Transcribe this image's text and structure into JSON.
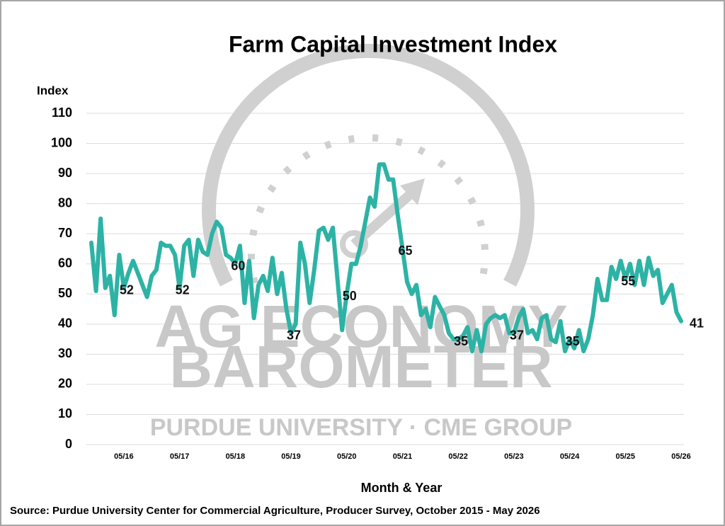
{
  "chart_data": {
    "type": "line",
    "title": "Farm Capital Investment Index",
    "y_label": "Index",
    "x_label": "Month & Year",
    "source": "Source: Purdue University Center for Commercial Agriculture, Producer Survey, October 2015 - May 2026",
    "watermark": [
      "AG ECONOMY",
      "BAROMETER",
      "PURDUE UNIVERSITY · CME GROUP"
    ],
    "categories": [
      null,
      null,
      null,
      null,
      null,
      null,
      null,
      "05/16",
      null,
      null,
      null,
      null,
      null,
      null,
      null,
      null,
      null,
      null,
      null,
      "05/17",
      null,
      null,
      null,
      null,
      null,
      null,
      null,
      null,
      null,
      null,
      null,
      "05/18",
      null,
      null,
      null,
      null,
      null,
      null,
      null,
      null,
      null,
      null,
      null,
      "05/19",
      null,
      null,
      null,
      null,
      null,
      null,
      null,
      null,
      null,
      null,
      null,
      "05/20",
      null,
      null,
      null,
      null,
      null,
      null,
      null,
      null,
      null,
      null,
      null,
      "05/21",
      null,
      null,
      null,
      null,
      null,
      null,
      null,
      null,
      null,
      null,
      null,
      "05/22",
      null,
      null,
      null,
      null,
      null,
      null,
      null,
      null,
      null,
      null,
      null,
      "05/23",
      null,
      null,
      null,
      null,
      null,
      null,
      null,
      null,
      null,
      null,
      null,
      "05/24",
      null,
      null,
      null,
      null,
      null,
      null,
      null,
      null,
      null,
      null,
      null,
      "05/25",
      null,
      null,
      null,
      null,
      null,
      null,
      null,
      null,
      null,
      null,
      null,
      "05/26"
    ],
    "series": [
      {
        "name": "Farm Capital Investment Index",
        "color": "#2db3a5",
        "values": [
          67,
          51,
          75,
          52,
          56,
          43,
          63,
          52,
          57,
          61,
          57,
          53,
          49,
          56,
          58,
          67,
          66,
          66,
          63,
          52,
          66,
          68,
          56,
          68,
          64,
          63,
          70,
          74,
          72,
          63,
          62,
          60,
          66,
          47,
          61,
          42,
          53,
          56,
          51,
          62,
          50,
          57,
          45,
          37,
          40,
          67,
          60,
          47,
          58,
          71,
          72,
          68,
          72,
          55,
          38,
          50,
          60,
          60,
          66,
          74,
          82,
          79,
          93,
          93,
          88,
          88,
          76,
          65,
          54,
          50,
          53,
          43,
          45,
          39,
          49,
          46,
          43,
          37,
          35,
          35,
          36,
          39,
          31,
          38,
          31,
          40,
          42,
          43,
          42,
          43,
          37,
          37,
          42,
          45,
          37,
          38,
          35,
          42,
          43,
          35,
          34,
          41,
          31,
          35,
          32,
          38,
          31,
          35,
          43,
          55,
          48,
          48,
          59,
          55,
          61,
          55,
          60,
          53,
          61,
          53,
          62,
          56,
          58,
          47,
          50,
          53,
          44,
          41
        ],
        "value_labels": [
          null,
          null,
          null,
          null,
          null,
          null,
          null,
          "52",
          null,
          null,
          null,
          null,
          null,
          null,
          null,
          null,
          null,
          null,
          null,
          "52",
          null,
          null,
          null,
          null,
          null,
          null,
          null,
          null,
          null,
          null,
          null,
          "60",
          null,
          null,
          null,
          null,
          null,
          null,
          null,
          null,
          null,
          null,
          null,
          "37",
          null,
          null,
          null,
          null,
          null,
          null,
          null,
          null,
          null,
          null,
          null,
          "50",
          null,
          null,
          null,
          null,
          null,
          null,
          null,
          null,
          null,
          null,
          null,
          "65",
          null,
          null,
          null,
          null,
          null,
          null,
          null,
          null,
          null,
          null,
          null,
          "35",
          null,
          null,
          null,
          null,
          null,
          null,
          null,
          null,
          null,
          null,
          null,
          "37",
          null,
          null,
          null,
          null,
          null,
          null,
          null,
          null,
          null,
          null,
          null,
          "35",
          null,
          null,
          null,
          null,
          null,
          null,
          null,
          null,
          null,
          null,
          null,
          "55",
          null,
          null,
          null,
          null,
          null,
          null,
          null,
          null,
          null,
          null,
          null,
          "41"
        ]
      }
    ],
    "ylim": [
      0,
      110
    ],
    "yticks": [
      0,
      10,
      20,
      30,
      40,
      50,
      60,
      70,
      80,
      90,
      100,
      110
    ],
    "grid": true
  }
}
